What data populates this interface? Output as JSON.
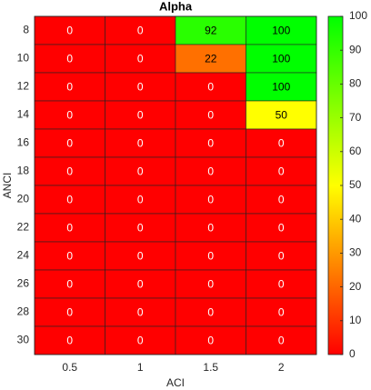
{
  "chart_data": {
    "type": "heatmap",
    "title": "Alpha",
    "x_label": "ACI",
    "y_label": "ANCI",
    "x": [
      0.5,
      1,
      1.5,
      2
    ],
    "y": [
      8,
      10,
      12,
      14,
      16,
      18,
      20,
      22,
      24,
      26,
      28,
      30
    ],
    "values": [
      [
        0,
        0,
        92,
        100
      ],
      [
        0,
        0,
        22,
        100
      ],
      [
        0,
        0,
        0,
        100
      ],
      [
        0,
        0,
        0,
        50
      ],
      [
        0,
        0,
        0,
        0
      ],
      [
        0,
        0,
        0,
        0
      ],
      [
        0,
        0,
        0,
        0
      ],
      [
        0,
        0,
        0,
        0
      ],
      [
        0,
        0,
        0,
        0
      ],
      [
        0,
        0,
        0,
        0
      ],
      [
        0,
        0,
        0,
        0
      ],
      [
        0,
        0,
        0,
        0
      ]
    ],
    "colormap": [
      "#ff0000",
      "#ffff00",
      "#00ff00"
    ],
    "clim": [
      0,
      100
    ],
    "cticks": [
      0,
      10,
      20,
      30,
      40,
      50,
      60,
      70,
      80,
      90,
      100
    ]
  }
}
